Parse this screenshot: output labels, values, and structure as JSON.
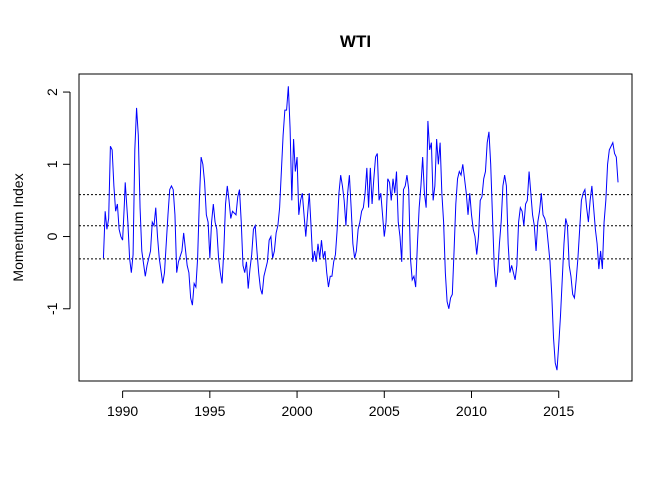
{
  "chart_data": {
    "type": "line",
    "title": "WTI",
    "xlabel": "",
    "ylabel": "Momentum Index",
    "xlim": [
      1987.5,
      2019.2
    ],
    "ylim": [
      -2.0,
      2.25
    ],
    "x_ticks": [
      1990,
      1995,
      2000,
      2005,
      2010,
      2015
    ],
    "x_tick_labels": [
      "1990",
      "1995",
      "2000",
      "2005",
      "2010",
      "2015"
    ],
    "y_ticks": [
      -1,
      0,
      1,
      2
    ],
    "y_tick_labels": [
      "-1",
      "0",
      "1",
      "2"
    ],
    "reference_lines": [
      0.58,
      0.15,
      -0.31
    ],
    "reference_line_style": "dotted",
    "series": [
      {
        "color": "#0000ff",
        "points": [
          [
            1988.9,
            -0.3
          ],
          [
            1989.0,
            0.35
          ],
          [
            1989.1,
            0.1
          ],
          [
            1989.2,
            0.25
          ],
          [
            1989.3,
            1.25
          ],
          [
            1989.4,
            1.2
          ],
          [
            1989.5,
            0.7
          ],
          [
            1989.6,
            0.35
          ],
          [
            1989.7,
            0.45
          ],
          [
            1989.8,
            0.1
          ],
          [
            1989.9,
            0.0
          ],
          [
            1990.0,
            -0.05
          ],
          [
            1990.1,
            0.45
          ],
          [
            1990.15,
            0.75
          ],
          [
            1990.3,
            0.2
          ],
          [
            1990.4,
            -0.3
          ],
          [
            1990.5,
            -0.5
          ],
          [
            1990.6,
            -0.25
          ],
          [
            1990.7,
            1.2
          ],
          [
            1990.8,
            1.78
          ],
          [
            1990.9,
            1.4
          ],
          [
            1991.0,
            0.4
          ],
          [
            1991.1,
            -0.2
          ],
          [
            1991.3,
            -0.55
          ],
          [
            1991.4,
            -0.4
          ],
          [
            1991.6,
            -0.2
          ],
          [
            1991.7,
            0.2
          ],
          [
            1991.8,
            0.15
          ],
          [
            1991.9,
            0.4
          ],
          [
            1992.0,
            0.0
          ],
          [
            1992.1,
            -0.3
          ],
          [
            1992.3,
            -0.65
          ],
          [
            1992.4,
            -0.5
          ],
          [
            1992.6,
            0.3
          ],
          [
            1992.7,
            0.65
          ],
          [
            1992.8,
            0.7
          ],
          [
            1992.9,
            0.65
          ],
          [
            1993.0,
            0.3
          ],
          [
            1993.1,
            -0.5
          ],
          [
            1993.2,
            -0.35
          ],
          [
            1993.4,
            -0.2
          ],
          [
            1993.5,
            0.05
          ],
          [
            1993.7,
            -0.4
          ],
          [
            1993.8,
            -0.5
          ],
          [
            1993.9,
            -0.85
          ],
          [
            1994.0,
            -0.95
          ],
          [
            1994.1,
            -0.65
          ],
          [
            1994.2,
            -0.7
          ],
          [
            1994.3,
            -0.3
          ],
          [
            1994.4,
            0.5
          ],
          [
            1994.5,
            1.1
          ],
          [
            1994.6,
            1.0
          ],
          [
            1994.7,
            0.75
          ],
          [
            1994.8,
            0.3
          ],
          [
            1994.9,
            0.2
          ],
          [
            1995.0,
            -0.3
          ],
          [
            1995.1,
            0.2
          ],
          [
            1995.2,
            0.45
          ],
          [
            1995.3,
            0.2
          ],
          [
            1995.4,
            0.1
          ],
          [
            1995.5,
            -0.3
          ],
          [
            1995.6,
            -0.5
          ],
          [
            1995.7,
            -0.65
          ],
          [
            1995.8,
            -0.2
          ],
          [
            1995.9,
            0.45
          ],
          [
            1996.0,
            0.7
          ],
          [
            1996.1,
            0.5
          ],
          [
            1996.2,
            0.25
          ],
          [
            1996.3,
            0.35
          ],
          [
            1996.5,
            0.3
          ],
          [
            1996.6,
            0.55
          ],
          [
            1996.7,
            0.65
          ],
          [
            1996.8,
            0.2
          ],
          [
            1996.9,
            -0.4
          ],
          [
            1997.0,
            -0.5
          ],
          [
            1997.1,
            -0.35
          ],
          [
            1997.2,
            -0.72
          ],
          [
            1997.3,
            -0.45
          ],
          [
            1997.4,
            -0.25
          ],
          [
            1997.5,
            0.1
          ],
          [
            1997.6,
            0.15
          ],
          [
            1997.7,
            -0.2
          ],
          [
            1997.8,
            -0.5
          ],
          [
            1997.9,
            -0.72
          ],
          [
            1998.0,
            -0.8
          ],
          [
            1998.1,
            -0.55
          ],
          [
            1998.2,
            -0.45
          ],
          [
            1998.3,
            -0.35
          ],
          [
            1998.4,
            -0.05
          ],
          [
            1998.5,
            0.0
          ],
          [
            1998.6,
            -0.3
          ],
          [
            1998.7,
            -0.2
          ],
          [
            1998.8,
            0.05
          ],
          [
            1998.9,
            0.15
          ],
          [
            1999.0,
            0.4
          ],
          [
            1999.1,
            0.9
          ],
          [
            1999.2,
            1.4
          ],
          [
            1999.3,
            1.75
          ],
          [
            1999.4,
            1.75
          ],
          [
            1999.5,
            2.08
          ],
          [
            1999.6,
            1.5
          ],
          [
            1999.7,
            0.5
          ],
          [
            1999.8,
            1.35
          ],
          [
            1999.9,
            0.9
          ],
          [
            2000.0,
            1.1
          ],
          [
            2000.1,
            0.3
          ],
          [
            2000.2,
            0.5
          ],
          [
            2000.3,
            0.6
          ],
          [
            2000.4,
            0.3
          ],
          [
            2000.5,
            0.0
          ],
          [
            2000.6,
            0.3
          ],
          [
            2000.7,
            0.6
          ],
          [
            2000.8,
            0.15
          ],
          [
            2000.9,
            -0.35
          ],
          [
            2001.0,
            -0.2
          ],
          [
            2001.1,
            -0.35
          ],
          [
            2001.2,
            -0.1
          ],
          [
            2001.3,
            -0.3
          ],
          [
            2001.4,
            -0.05
          ],
          [
            2001.5,
            -0.3
          ],
          [
            2001.6,
            -0.2
          ],
          [
            2001.7,
            -0.5
          ],
          [
            2001.8,
            -0.7
          ],
          [
            2001.9,
            -0.55
          ],
          [
            2002.0,
            -0.55
          ],
          [
            2002.1,
            -0.35
          ],
          [
            2002.2,
            -0.25
          ],
          [
            2002.3,
            0.1
          ],
          [
            2002.4,
            0.6
          ],
          [
            2002.5,
            0.85
          ],
          [
            2002.6,
            0.7
          ],
          [
            2002.7,
            0.5
          ],
          [
            2002.8,
            0.15
          ],
          [
            2002.9,
            0.6
          ],
          [
            2003.0,
            0.85
          ],
          [
            2003.1,
            0.4
          ],
          [
            2003.2,
            -0.1
          ],
          [
            2003.3,
            -0.3
          ],
          [
            2003.4,
            -0.2
          ],
          [
            2003.5,
            0.1
          ],
          [
            2003.6,
            0.2
          ],
          [
            2003.7,
            0.35
          ],
          [
            2003.8,
            0.4
          ],
          [
            2003.9,
            0.6
          ],
          [
            2004.0,
            0.95
          ],
          [
            2004.1,
            0.4
          ],
          [
            2004.2,
            0.95
          ],
          [
            2004.3,
            0.45
          ],
          [
            2004.4,
            0.8
          ],
          [
            2004.5,
            1.1
          ],
          [
            2004.6,
            1.15
          ],
          [
            2004.7,
            0.5
          ],
          [
            2004.8,
            0.6
          ],
          [
            2004.9,
            0.3
          ],
          [
            2005.0,
            0.0
          ],
          [
            2005.1,
            0.2
          ],
          [
            2005.2,
            0.8
          ],
          [
            2005.3,
            0.75
          ],
          [
            2005.4,
            0.5
          ],
          [
            2005.5,
            0.8
          ],
          [
            2005.6,
            0.6
          ],
          [
            2005.7,
            0.9
          ],
          [
            2005.8,
            0.2
          ],
          [
            2005.9,
            0.0
          ],
          [
            2006.0,
            -0.35
          ],
          [
            2006.1,
            0.65
          ],
          [
            2006.2,
            0.7
          ],
          [
            2006.3,
            0.85
          ],
          [
            2006.4,
            0.65
          ],
          [
            2006.5,
            -0.3
          ],
          [
            2006.6,
            -0.6
          ],
          [
            2006.7,
            -0.55
          ],
          [
            2006.8,
            -0.7
          ],
          [
            2006.9,
            -0.1
          ],
          [
            2007.0,
            0.4
          ],
          [
            2007.1,
            0.7
          ],
          [
            2007.2,
            1.1
          ],
          [
            2007.3,
            0.6
          ],
          [
            2007.4,
            0.4
          ],
          [
            2007.5,
            1.6
          ],
          [
            2007.6,
            1.2
          ],
          [
            2007.7,
            1.3
          ],
          [
            2007.8,
            0.5
          ],
          [
            2007.9,
            0.7
          ],
          [
            2008.0,
            1.35
          ],
          [
            2008.1,
            1.0
          ],
          [
            2008.2,
            1.3
          ],
          [
            2008.3,
            0.6
          ],
          [
            2008.4,
            0.2
          ],
          [
            2008.5,
            -0.5
          ],
          [
            2008.6,
            -0.9
          ],
          [
            2008.7,
            -1.0
          ],
          [
            2008.8,
            -0.85
          ],
          [
            2008.9,
            -0.8
          ],
          [
            2009.0,
            -0.2
          ],
          [
            2009.1,
            0.45
          ],
          [
            2009.2,
            0.8
          ],
          [
            2009.3,
            0.9
          ],
          [
            2009.4,
            0.85
          ],
          [
            2009.5,
            1.0
          ],
          [
            2009.6,
            0.8
          ],
          [
            2009.7,
            0.6
          ],
          [
            2009.8,
            0.3
          ],
          [
            2009.9,
            0.6
          ],
          [
            2010.0,
            0.3
          ],
          [
            2010.1,
            0.1
          ],
          [
            2010.2,
            0.0
          ],
          [
            2010.3,
            -0.25
          ],
          [
            2010.4,
            0.0
          ],
          [
            2010.5,
            0.5
          ],
          [
            2010.6,
            0.55
          ],
          [
            2010.7,
            0.8
          ],
          [
            2010.8,
            0.9
          ],
          [
            2010.9,
            1.3
          ],
          [
            2011.0,
            1.45
          ],
          [
            2011.1,
            1.0
          ],
          [
            2011.2,
            0.3
          ],
          [
            2011.3,
            -0.4
          ],
          [
            2011.4,
            -0.7
          ],
          [
            2011.5,
            -0.5
          ],
          [
            2011.6,
            -0.1
          ],
          [
            2011.7,
            0.2
          ],
          [
            2011.8,
            0.7
          ],
          [
            2011.9,
            0.85
          ],
          [
            2012.0,
            0.7
          ],
          [
            2012.1,
            -0.1
          ],
          [
            2012.2,
            -0.5
          ],
          [
            2012.3,
            -0.4
          ],
          [
            2012.4,
            -0.5
          ],
          [
            2012.5,
            -0.6
          ],
          [
            2012.6,
            -0.4
          ],
          [
            2012.7,
            0.2
          ],
          [
            2012.8,
            0.4
          ],
          [
            2012.9,
            0.35
          ],
          [
            2013.0,
            0.15
          ],
          [
            2013.1,
            0.45
          ],
          [
            2013.2,
            0.5
          ],
          [
            2013.3,
            0.9
          ],
          [
            2013.4,
            0.6
          ],
          [
            2013.5,
            0.3
          ],
          [
            2013.6,
            0.15
          ],
          [
            2013.7,
            -0.2
          ],
          [
            2013.8,
            0.2
          ],
          [
            2013.9,
            0.35
          ],
          [
            2014.0,
            0.6
          ],
          [
            2014.1,
            0.3
          ],
          [
            2014.2,
            0.25
          ],
          [
            2014.3,
            0.15
          ],
          [
            2014.4,
            -0.1
          ],
          [
            2014.5,
            -0.35
          ],
          [
            2014.6,
            -0.8
          ],
          [
            2014.7,
            -1.4
          ],
          [
            2014.8,
            -1.75
          ],
          [
            2014.9,
            -1.85
          ],
          [
            2015.0,
            -1.5
          ],
          [
            2015.1,
            -1.1
          ],
          [
            2015.2,
            -0.6
          ],
          [
            2015.3,
            -0.1
          ],
          [
            2015.4,
            0.25
          ],
          [
            2015.5,
            0.15
          ],
          [
            2015.6,
            -0.4
          ],
          [
            2015.7,
            -0.55
          ],
          [
            2015.8,
            -0.8
          ],
          [
            2015.9,
            -0.85
          ],
          [
            2016.0,
            -0.6
          ],
          [
            2016.1,
            -0.3
          ],
          [
            2016.2,
            0.1
          ],
          [
            2016.3,
            0.5
          ],
          [
            2016.4,
            0.6
          ],
          [
            2016.5,
            0.65
          ],
          [
            2016.6,
            0.4
          ],
          [
            2016.7,
            0.2
          ],
          [
            2016.8,
            0.5
          ],
          [
            2016.9,
            0.7
          ],
          [
            2017.0,
            0.4
          ],
          [
            2017.1,
            0.1
          ],
          [
            2017.2,
            -0.1
          ],
          [
            2017.3,
            -0.45
          ],
          [
            2017.4,
            -0.2
          ],
          [
            2017.5,
            -0.45
          ],
          [
            2017.6,
            0.2
          ],
          [
            2017.7,
            0.5
          ],
          [
            2017.8,
            1.0
          ],
          [
            2017.9,
            1.2
          ],
          [
            2018.0,
            1.25
          ],
          [
            2018.1,
            1.3
          ],
          [
            2018.2,
            1.15
          ],
          [
            2018.3,
            1.1
          ],
          [
            2018.4,
            0.75
          ]
        ]
      }
    ]
  }
}
